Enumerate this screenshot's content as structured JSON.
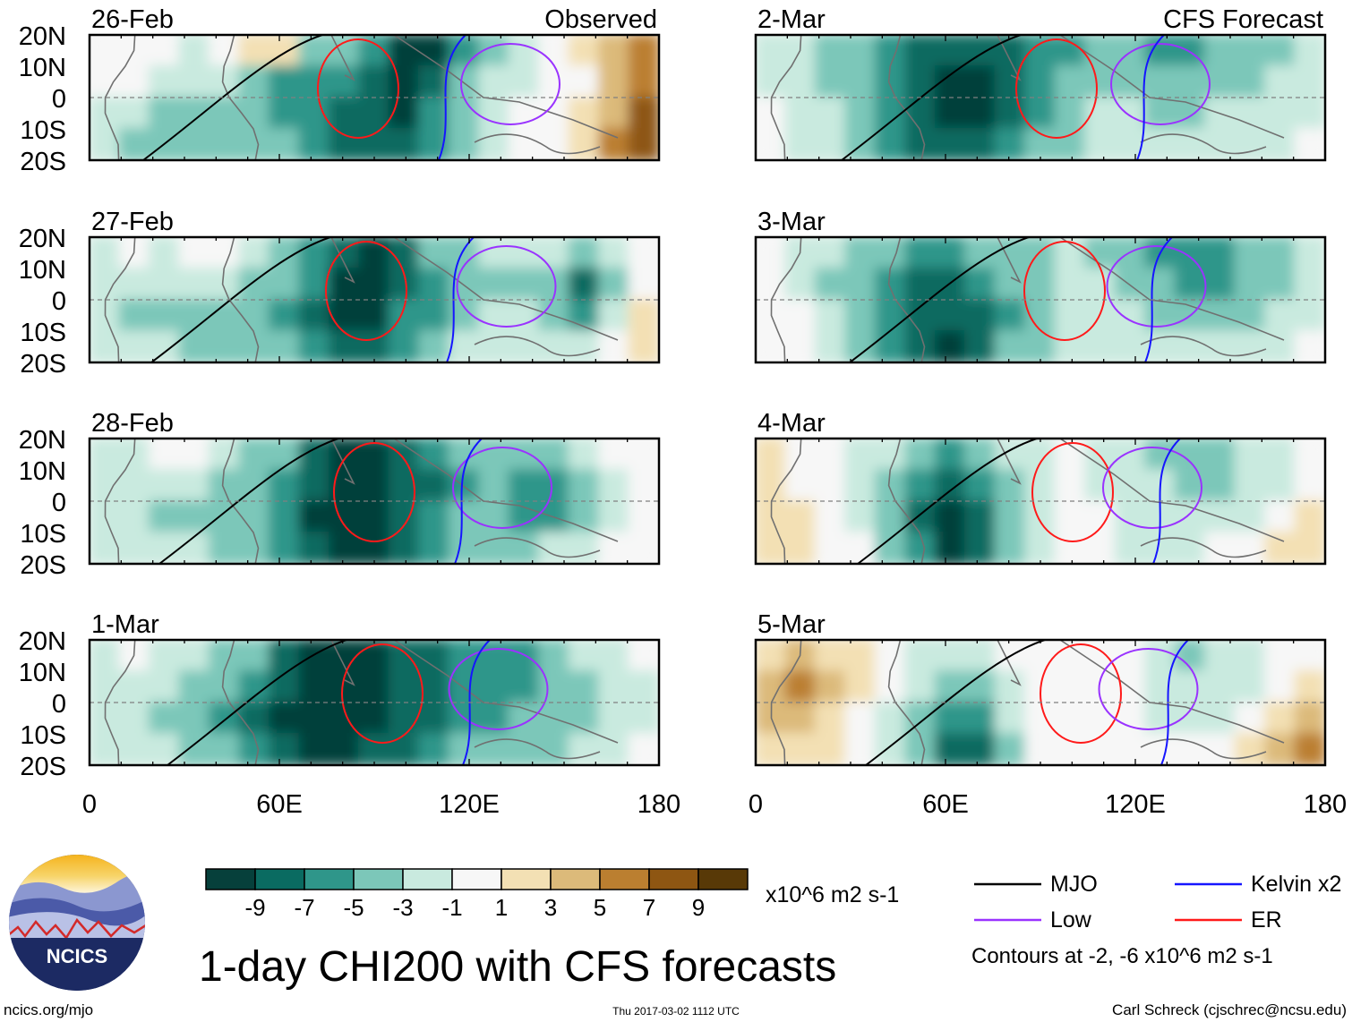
{
  "chart_data": {
    "type": "heatmap",
    "title": "1-day CHI200 with CFS forecasts",
    "variable": "CHI200",
    "units": "x10^6 m2 s-1",
    "x_axis": {
      "ticks": [
        "0",
        "60E",
        "120E",
        "180"
      ],
      "range": [
        0,
        180
      ]
    },
    "y_axis": {
      "ticks": [
        "20N",
        "10N",
        "0",
        "10S",
        "20S"
      ],
      "range": [
        -20,
        20
      ]
    },
    "columns": [
      {
        "label": "Observed",
        "panels": [
          {
            "date": "26-Feb",
            "cells": [
              [
                0,
                0,
                0,
                -1,
                0,
                2,
                2,
                -4,
                -4,
                -6,
                -9,
                -9,
                -6,
                -3,
                -1,
                1,
                2,
                4,
                6
              ],
              [
                1,
                0,
                -1,
                -1,
                -2,
                -3,
                -5,
                -6,
                -6,
                -8,
                -9,
                -7,
                -4,
                -2,
                -1,
                1,
                1,
                4,
                7
              ],
              [
                -2,
                -1,
                -3,
                -3,
                -4,
                -4,
                -5,
                -5,
                -7,
                -8,
                -9,
                -6,
                -4,
                -2,
                0,
                1,
                2,
                5,
                8
              ],
              [
                -1,
                -3,
                -3,
                -4,
                -4,
                -3,
                -4,
                -5,
                -7,
                -8,
                -7,
                -5,
                -3,
                -1,
                0,
                1,
                2,
                6,
                9
              ]
            ]
          },
          {
            "date": "27-Feb",
            "cells": [
              [
                -1,
                0,
                -1,
                0,
                0,
                -2,
                -3,
                -5,
                -8,
                -9,
                -7,
                -4,
                -3,
                -2,
                -2,
                -2,
                -3,
                -2,
                1
              ],
              [
                -1,
                -1,
                -2,
                -2,
                -2,
                -3,
                -4,
                -6,
                -9,
                -9,
                -7,
                -5,
                -4,
                -3,
                -3,
                -4,
                -7,
                -3,
                1
              ],
              [
                -2,
                -3,
                -4,
                -4,
                -4,
                -4,
                -5,
                -7,
                -9,
                -9,
                -6,
                -5,
                -3,
                -2,
                -2,
                -3,
                -5,
                -2,
                2
              ],
              [
                -1,
                -2,
                -2,
                -3,
                -3,
                -3,
                -4,
                -6,
                -8,
                -8,
                -5,
                -3,
                -2,
                -1,
                -1,
                -2,
                -2,
                1,
                3
              ]
            ]
          },
          {
            "date": "28-Feb",
            "cells": [
              [
                -1,
                -1,
                0,
                0,
                -2,
                -3,
                -4,
                -7,
                -9,
                -9,
                -8,
                -6,
                -4,
                -4,
                -4,
                -4,
                -2,
                0,
                1
              ],
              [
                -1,
                -2,
                -2,
                -2,
                -3,
                -4,
                -6,
                -8,
                -9,
                -9,
                -8,
                -7,
                -5,
                -4,
                -5,
                -5,
                -3,
                -1,
                0
              ],
              [
                -1,
                -2,
                -3,
                -3,
                -4,
                -4,
                -6,
                -9,
                -9,
                -9,
                -8,
                -6,
                -4,
                -4,
                -5,
                -5,
                -3,
                -1,
                1
              ],
              [
                -1,
                -1,
                -2,
                -2,
                -3,
                -3,
                -5,
                -8,
                -9,
                -9,
                -7,
                -5,
                -3,
                -3,
                -3,
                -2,
                -1,
                0,
                1
              ]
            ]
          },
          {
            "date": "1-Mar",
            "cells": [
              [
                -1,
                0,
                -1,
                -2,
                -3,
                -4,
                -7,
                -9,
                -9,
                -9,
                -8,
                -7,
                -5,
                -5,
                -5,
                -4,
                -2,
                -1,
                0
              ],
              [
                -1,
                -1,
                -2,
                -3,
                -4,
                -5,
                -8,
                -9,
                -9,
                -9,
                -8,
                -7,
                -6,
                -5,
                -5,
                -4,
                -3,
                -2,
                -1
              ],
              [
                -2,
                -2,
                -3,
                -4,
                -5,
                -7,
                -9,
                -9,
                -9,
                -9,
                -8,
                -7,
                -5,
                -5,
                -4,
                -4,
                -3,
                -2,
                -1
              ],
              [
                -1,
                -2,
                -2,
                -3,
                -4,
                -6,
                -8,
                -9,
                -9,
                -8,
                -7,
                -6,
                -4,
                -4,
                -3,
                -3,
                -2,
                -1,
                0
              ]
            ]
          }
        ]
      },
      {
        "label": "CFS Forecast",
        "panels": [
          {
            "date": "2-Mar",
            "cells": [
              [
                -1,
                -2,
                -3,
                -4,
                -5,
                -7,
                -8,
                -8,
                -7,
                -6,
                -5,
                -4,
                -4,
                -5,
                -5,
                -4,
                -3,
                -3,
                -2
              ],
              [
                -1,
                -2,
                -3,
                -4,
                -6,
                -8,
                -9,
                -9,
                -8,
                -6,
                -4,
                -3,
                -3,
                -4,
                -4,
                -3,
                -3,
                -2,
                -1
              ],
              [
                0,
                -1,
                -2,
                -4,
                -6,
                -8,
                -9,
                -9,
                -7,
                -5,
                -3,
                -2,
                -2,
                -3,
                -3,
                -2,
                -2,
                -1,
                -1
              ],
              [
                0,
                -1,
                -2,
                -3,
                -5,
                -7,
                -8,
                -8,
                -6,
                -4,
                -3,
                -2,
                -2,
                -2,
                -2,
                -2,
                -1,
                -1,
                0
              ]
            ]
          },
          {
            "date": "3-Mar",
            "cells": [
              [
                0,
                -1,
                -2,
                -3,
                -4,
                -5,
                -5,
                -4,
                -3,
                -3,
                -2,
                -3,
                -4,
                -5,
                -6,
                -6,
                -4,
                -3,
                -2
              ],
              [
                1,
                -1,
                -3,
                -4,
                -5,
                -7,
                -7,
                -6,
                -4,
                -3,
                -2,
                -2,
                -3,
                -4,
                -5,
                -5,
                -4,
                -3,
                -2
              ],
              [
                1,
                0,
                -2,
                -4,
                -6,
                -8,
                -8,
                -7,
                -5,
                -3,
                -2,
                -2,
                -2,
                -3,
                -3,
                -3,
                -3,
                -2,
                -1
              ],
              [
                1,
                0,
                -1,
                -3,
                -5,
                -8,
                -9,
                -7,
                -4,
                -3,
                -2,
                -2,
                -2,
                -2,
                -2,
                -2,
                -2,
                -1,
                0
              ]
            ]
          },
          {
            "date": "4-Mar",
            "cells": [
              [
                2,
                1,
                0,
                -1,
                -2,
                -3,
                -5,
                -4,
                -2,
                -1,
                0,
                -1,
                -2,
                -3,
                -4,
                -4,
                -2,
                -1,
                0
              ],
              [
                2,
                1,
                0,
                -1,
                -3,
                -5,
                -7,
                -6,
                -3,
                -1,
                0,
                -1,
                -2,
                -2,
                -3,
                -3,
                -2,
                -1,
                0
              ],
              [
                3,
                2,
                1,
                -1,
                -4,
                -7,
                -9,
                -8,
                -4,
                -1,
                0,
                0,
                -1,
                -1,
                -2,
                -2,
                -1,
                1,
                2
              ],
              [
                2,
                2,
                1,
                0,
                -3,
                -6,
                -9,
                -8,
                -4,
                -1,
                0,
                0,
                -1,
                -1,
                -1,
                0,
                1,
                3,
                3
              ]
            ]
          },
          {
            "date": "5-Mar",
            "cells": [
              [
                3,
                4,
                3,
                2,
                0,
                -1,
                -2,
                -2,
                0,
                1,
                1,
                1,
                0,
                -2,
                -3,
                -2,
                -1,
                0,
                1
              ],
              [
                5,
                6,
                4,
                2,
                0,
                -2,
                -4,
                -3,
                -1,
                0,
                1,
                1,
                0,
                -1,
                -2,
                -2,
                -1,
                1,
                2
              ],
              [
                4,
                5,
                3,
                1,
                -1,
                -3,
                -6,
                -5,
                -2,
                0,
                1,
                1,
                0,
                -1,
                -1,
                -1,
                1,
                3,
                5
              ],
              [
                3,
                3,
                2,
                1,
                -1,
                -3,
                -7,
                -7,
                -3,
                0,
                1,
                1,
                0,
                0,
                0,
                0,
                2,
                5,
                6
              ]
            ]
          }
        ]
      }
    ],
    "colorbar": {
      "ticks": [
        "-9",
        "-7",
        "-5",
        "-3",
        "-1",
        "1",
        "3",
        "5",
        "7",
        "9"
      ],
      "colors": [
        "#06403b",
        "#0a6b61",
        "#2f968a",
        "#7cc7b9",
        "#c9eadf",
        "#f7f7f7",
        "#f3e0b4",
        "#dcba7a",
        "#bb7f30",
        "#8e5612",
        "#583907"
      ]
    },
    "legend": {
      "items": [
        {
          "label": "MJO",
          "color": "#000000"
        },
        {
          "label": "Kelvin x2",
          "color": "#1515ff"
        },
        {
          "label": "Low",
          "color": "#9a33ff"
        },
        {
          "label": "ER",
          "color": "#ff1a1a"
        }
      ],
      "contours_note": "Contours at -2, -6 x10^6 m2 s-1"
    }
  },
  "footer": {
    "website": "ncics.org/mjo",
    "timestamp": "Thu 2017-03-02 1112 UTC",
    "author": "Carl Schreck (cjschrec@ncsu.edu)"
  },
  "logo": {
    "text": "NCICS"
  }
}
